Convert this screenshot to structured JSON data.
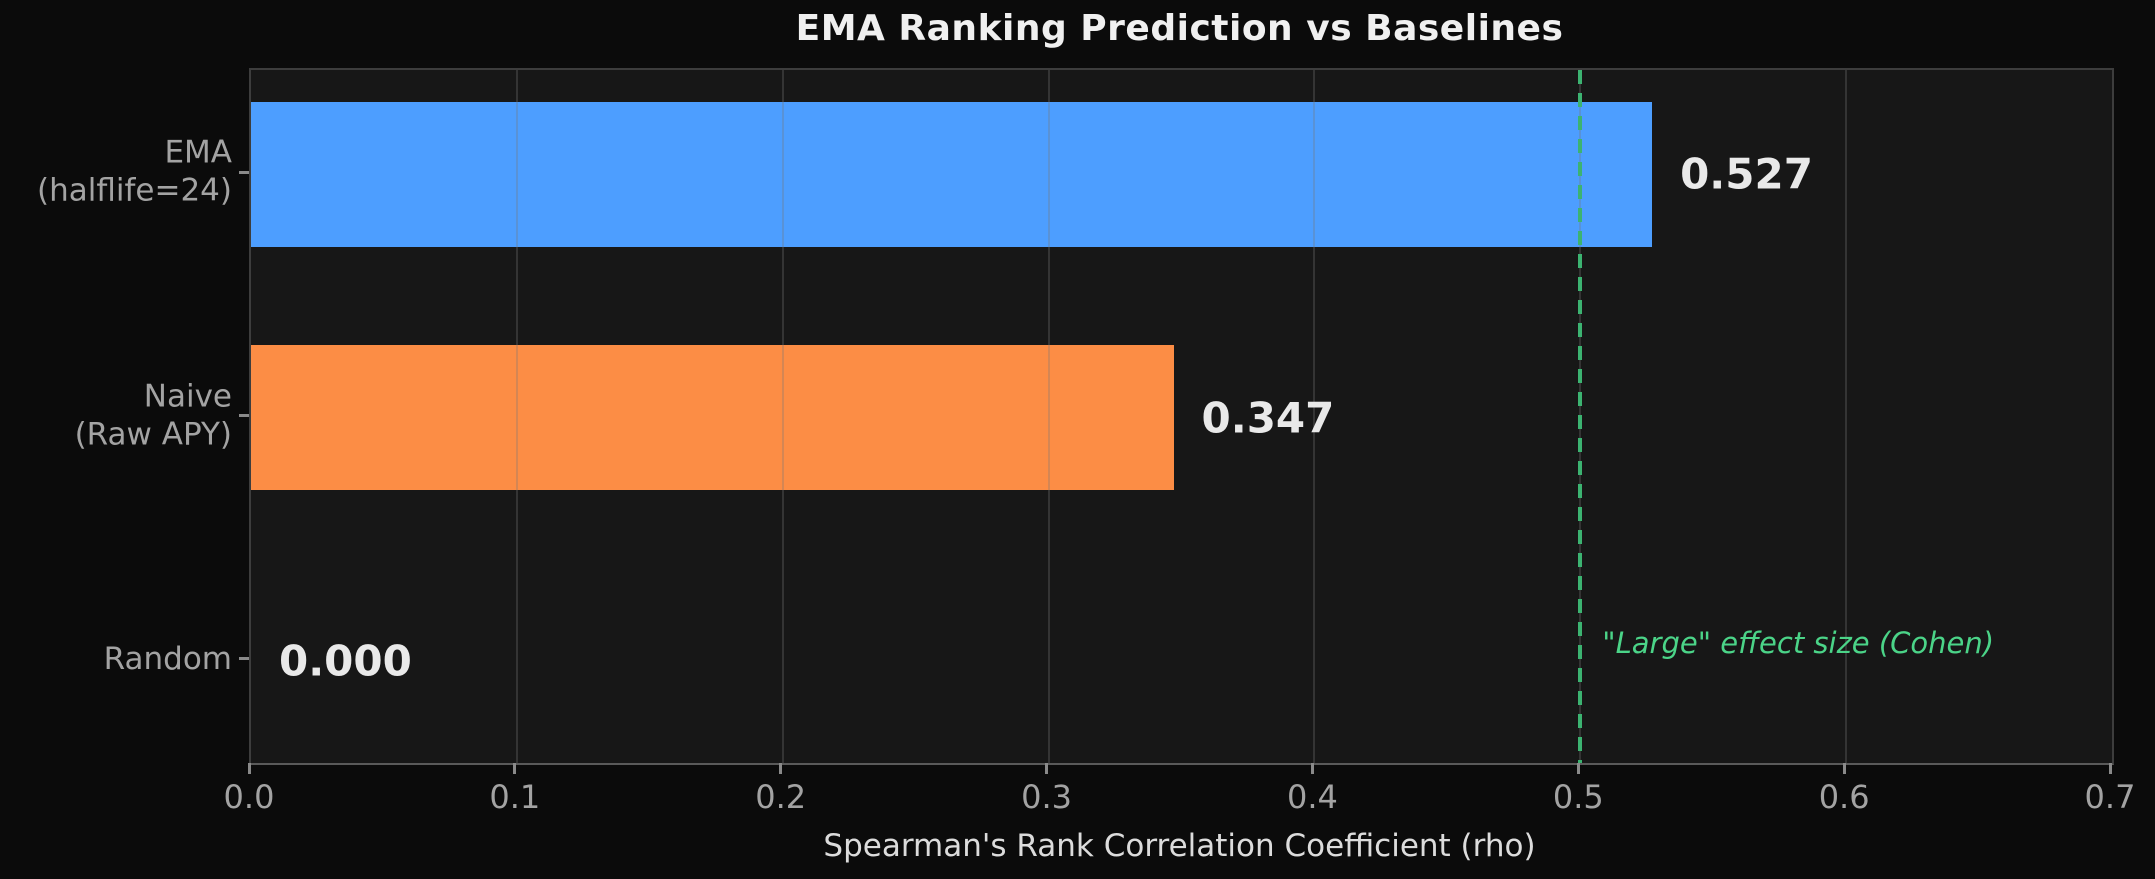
{
  "figure": {
    "background_color": "#0b0b0b",
    "plot_background_color": "#171717",
    "spine_color": "#3d3d3d"
  },
  "chart_data": {
    "type": "bar",
    "orientation": "horizontal",
    "title": "EMA Ranking Prediction vs Baselines",
    "xlabel": "Spearman's Rank Correlation Coefficient (rho)",
    "ylabel": "",
    "categories": [
      "EMA (halflife=24)",
      "Naive (Raw APY)",
      "Random"
    ],
    "category_lines": [
      [
        "EMA",
        "(halflife=24)"
      ],
      [
        "Naive",
        "(Raw APY)"
      ],
      [
        "Random"
      ]
    ],
    "values": [
      0.527,
      0.347,
      0.0
    ],
    "value_labels": [
      "0.527",
      "0.347",
      "0.000"
    ],
    "bar_colors": [
      "#4d9eff",
      "#fc8d45",
      "#4d9eff"
    ],
    "xlim": [
      0.0,
      0.7
    ],
    "x_ticks": [
      0.0,
      0.1,
      0.2,
      0.3,
      0.4,
      0.5,
      0.6,
      0.7
    ],
    "x_tick_labels": [
      "0.0",
      "0.1",
      "0.2",
      "0.3",
      "0.4",
      "0.5",
      "0.6",
      "0.7"
    ],
    "grid": true,
    "legend": null,
    "reference_line": {
      "x": 0.5,
      "style": "dashed",
      "color": "#3cb371",
      "label": "\"Large\" effect size (Cohen)",
      "label_color": "#4bd488"
    }
  }
}
